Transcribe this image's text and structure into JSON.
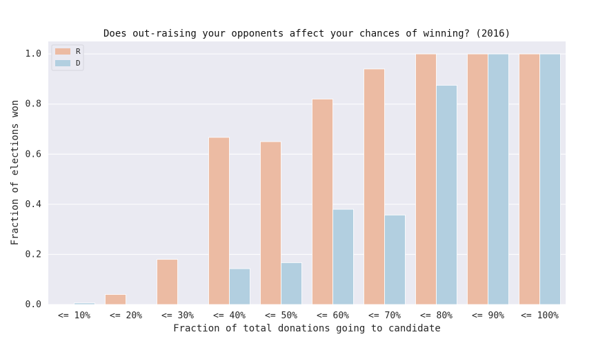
{
  "chart_data": {
    "type": "bar",
    "title": "Does out-raising your opponents affect your chances of winning? (2016)",
    "xlabel": "Fraction of total donations going to candidate",
    "ylabel": "Fraction of elections won",
    "categories": [
      "<= 10%",
      "<= 20%",
      "<= 30%",
      "<= 40%",
      "<= 50%",
      "<= 60%",
      "<= 70%",
      "<= 80%",
      "<= 90%",
      "<= 100%"
    ],
    "series": [
      {
        "name": "R",
        "color": "#ecbba3",
        "values": [
          0.0,
          0.04,
          0.18,
          0.667,
          0.65,
          0.82,
          0.94,
          1.0,
          1.0,
          1.0
        ]
      },
      {
        "name": "D",
        "color": "#b2cfe0",
        "values": [
          0.006,
          0.0,
          0.0,
          0.143,
          0.167,
          0.38,
          0.357,
          0.875,
          1.0,
          1.0
        ]
      }
    ],
    "ylim": [
      0,
      1.05
    ],
    "yticks": [
      "0.0",
      "0.2",
      "0.4",
      "0.6",
      "0.8",
      "1.0"
    ],
    "ytick_values": [
      0,
      0.2,
      0.4,
      0.6,
      0.8,
      1.0
    ],
    "grid": true,
    "legend_position": "top-left",
    "background_color": "#eaeaf2"
  }
}
